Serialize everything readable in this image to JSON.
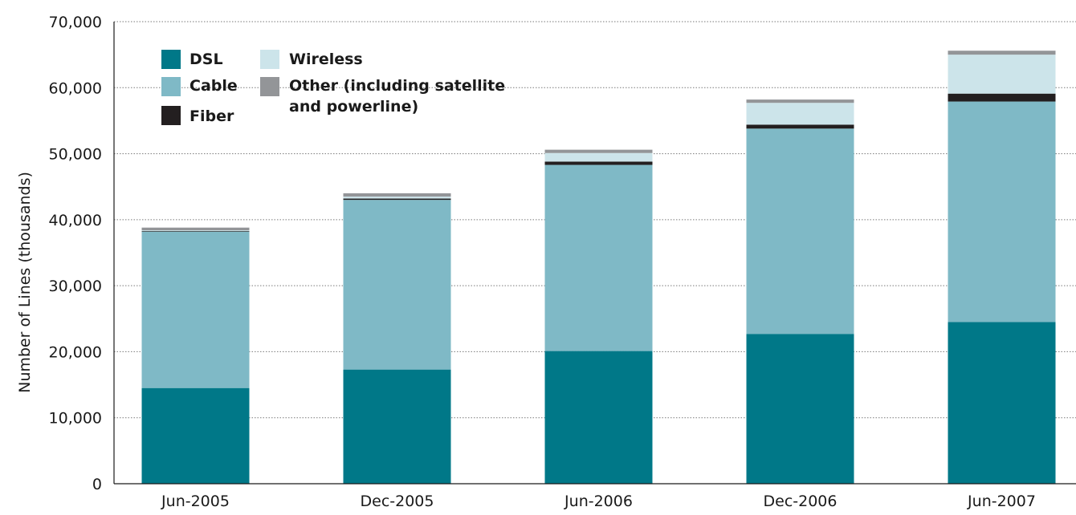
{
  "chart_data": {
    "type": "bar",
    "stacked": true,
    "title": "",
    "xlabel": "",
    "ylabel": "Number of Lines (thousands)",
    "ylim": [
      0,
      70000
    ],
    "yticks": [
      0,
      10000,
      20000,
      30000,
      40000,
      50000,
      60000,
      70000
    ],
    "ytick_labels": [
      "0",
      "10,000",
      "20,000",
      "30,000",
      "40,000",
      "50,000",
      "60,000",
      "70,000"
    ],
    "grid": "horizontal dotted",
    "legend_position": "top-left",
    "categories": [
      "Jun-2005",
      "Dec-2005",
      "Jun-2006",
      "Dec-2006",
      "Jun-2007"
    ],
    "series": [
      {
        "name": "DSL",
        "color": "#007888",
        "values": [
          14500,
          17300,
          20100,
          22700,
          24500
        ]
      },
      {
        "name": "Cable",
        "color": "#7fb9c6",
        "values": [
          23700,
          25700,
          28200,
          31100,
          33400
        ]
      },
      {
        "name": "Fiber",
        "color": "#231f20",
        "values": [
          100,
          200,
          500,
          600,
          1200
        ]
      },
      {
        "name": "Wireless",
        "color": "#cce4ea",
        "values": [
          100,
          300,
          1300,
          3300,
          5900
        ]
      },
      {
        "name": "Other (including satellite and powerline)",
        "color": "#939598",
        "values": [
          400,
          500,
          500,
          500,
          600
        ]
      }
    ],
    "legend": [
      {
        "series": 0,
        "lines": [
          "DSL"
        ]
      },
      {
        "series": 1,
        "lines": [
          "Cable"
        ]
      },
      {
        "series": 2,
        "lines": [
          "Fiber"
        ]
      },
      {
        "series": 3,
        "lines": [
          "Wireless"
        ]
      },
      {
        "series": 4,
        "lines": [
          "Other (including satellite",
          "and powerline)"
        ]
      }
    ]
  }
}
